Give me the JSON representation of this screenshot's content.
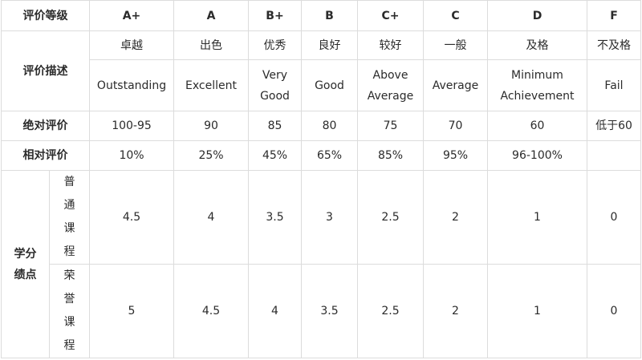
{
  "header": {
    "row_label": "评价等级",
    "grades": [
      "A+",
      "A",
      "B+",
      "B",
      "C+",
      "C",
      "D",
      "F"
    ]
  },
  "description": {
    "row_label": "评价描述",
    "cn": [
      "卓越",
      "出色",
      "优秀",
      "良好",
      "较好",
      "一般",
      "及格",
      "不及格"
    ],
    "en": [
      [
        "Outstanding"
      ],
      [
        "Excellent"
      ],
      [
        "Very",
        "Good"
      ],
      [
        "Good"
      ],
      [
        "Above",
        "Average"
      ],
      [
        "Average"
      ],
      [
        "Minimum",
        "Achievement"
      ],
      [
        "Fail"
      ]
    ]
  },
  "absolute": {
    "row_label": "绝对评价",
    "values": [
      "100-95",
      "90",
      "85",
      "80",
      "75",
      "70",
      "60",
      "低于60"
    ]
  },
  "relative": {
    "row_label": "相对评价",
    "values": [
      "10%",
      "25%",
      "45%",
      "65%",
      "85%",
      "95%",
      "96-100%",
      ""
    ]
  },
  "gpa": {
    "row_label": [
      "学分",
      "绩点"
    ],
    "regular": {
      "label": [
        "普",
        "通",
        "课",
        "程"
      ],
      "values": [
        "4.5",
        "4",
        "3.5",
        "3",
        "2.5",
        "2",
        "1",
        "0"
      ]
    },
    "honors": {
      "label": [
        "荣",
        "誉",
        "课",
        "程"
      ],
      "values": [
        "5",
        "4.5",
        "4",
        "3.5",
        "2.5",
        "2",
        "1",
        "0"
      ]
    }
  }
}
